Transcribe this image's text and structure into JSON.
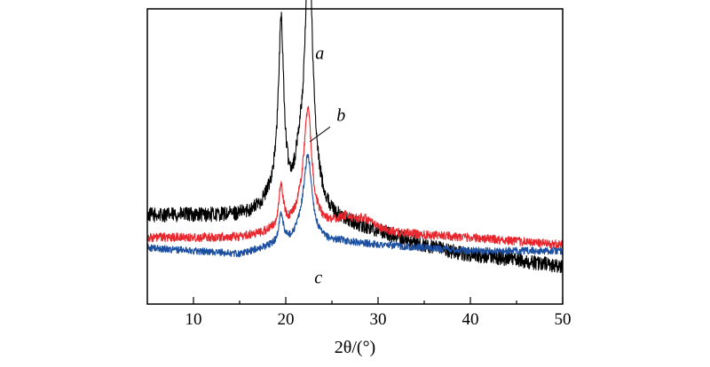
{
  "chart_data": {
    "type": "line",
    "title": "",
    "xlabel": "2θ/(°)",
    "ylabel": "",
    "xlim": [
      5,
      50
    ],
    "ylim": [
      0,
      100
    ],
    "xticks": [
      "10",
      "20",
      "30",
      "40",
      "50"
    ],
    "yticks": [],
    "grid": false,
    "legend": "inline labels",
    "series": [
      {
        "name": "a",
        "label": "a",
        "color": "#000000",
        "noise": 2.5,
        "baseline": [
          [
            5,
            30
          ],
          [
            10,
            30
          ],
          [
            15,
            29.5
          ],
          [
            18,
            30
          ],
          [
            26,
            27
          ],
          [
            30,
            24.5
          ],
          [
            35,
            19.5
          ],
          [
            40,
            16.5
          ],
          [
            45,
            15
          ],
          [
            50,
            12.5
          ]
        ],
        "peaks": [
          [
            19.5,
            57,
            0.35
          ],
          [
            22.5,
            88,
            0.5
          ],
          [
            21.5,
            12,
            0.6
          ],
          [
            19.0,
            8,
            1.2
          ],
          [
            23.5,
            4,
            1.0
          ]
        ]
      },
      {
        "name": "b",
        "label": "b",
        "color": "#e8262d",
        "noise": 1.5,
        "baseline": [
          [
            5,
            22.5
          ],
          [
            15,
            22.5
          ],
          [
            18,
            24
          ],
          [
            26,
            27
          ],
          [
            28,
            27
          ],
          [
            32,
            24
          ],
          [
            40,
            22.5
          ],
          [
            50,
            20
          ]
        ],
        "peaks": [
          [
            19.5,
            14,
            0.3
          ],
          [
            22.4,
            36,
            0.5
          ],
          [
            21.8,
            6,
            1.0
          ],
          [
            26.5,
            2,
            0.8
          ],
          [
            28.5,
            2,
            0.8
          ]
        ]
      },
      {
        "name": "c",
        "label": "c",
        "color": "#1c4fa0",
        "noise": 1.2,
        "baseline": [
          [
            5,
            19
          ],
          [
            10,
            18
          ],
          [
            15,
            16.8
          ],
          [
            18,
            19
          ],
          [
            26,
            21
          ],
          [
            30,
            20
          ],
          [
            40,
            18
          ],
          [
            50,
            18
          ]
        ],
        "peaks": [
          [
            19.5,
            10,
            0.3
          ],
          [
            22.4,
            27,
            0.55
          ],
          [
            21.8,
            4,
            1.0
          ]
        ]
      }
    ],
    "annotations": [
      {
        "text": "a",
        "x": 23.2,
        "y": 83
      },
      {
        "text": "b",
        "x": 25.5,
        "y": 62
      },
      {
        "text": "c",
        "x": 23.1,
        "y": 7
      }
    ]
  }
}
